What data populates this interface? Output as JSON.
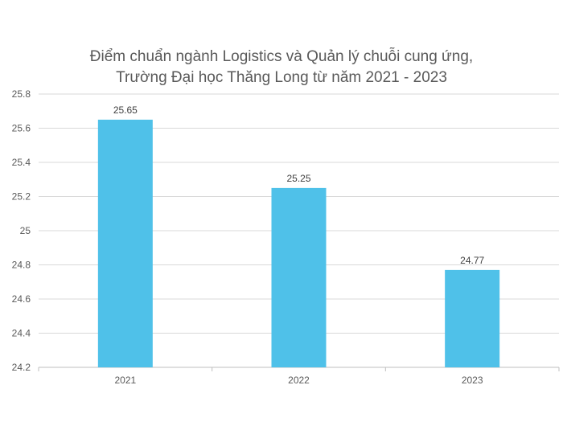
{
  "chart_data": {
    "type": "bar",
    "title_lines": [
      "Điểm chuẩn ngành Logistics và Quản lý chuỗi cung ứng,",
      "Trường Đại học Thăng Long từ năm 2021 - 2023"
    ],
    "categories": [
      "2021",
      "2022",
      "2023"
    ],
    "values": [
      25.65,
      25.25,
      24.77
    ],
    "data_labels": [
      "25.65",
      "25.25",
      "24.77"
    ],
    "ylim": [
      24.2,
      25.8
    ],
    "yticks": [
      24.2,
      24.4,
      24.6,
      24.8,
      25,
      25.2,
      25.4,
      25.6,
      25.8
    ],
    "ytick_labels": [
      "24.2",
      "24.4",
      "24.6",
      "24.8",
      "25",
      "25.2",
      "25.4",
      "25.6",
      "25.8"
    ],
    "grid": true,
    "legend": "none",
    "xlabel": "",
    "ylabel": "",
    "colors": {
      "bar": "#4FC1E9",
      "grid": "#d9d9d9",
      "axis": "#bfbfbf"
    }
  }
}
